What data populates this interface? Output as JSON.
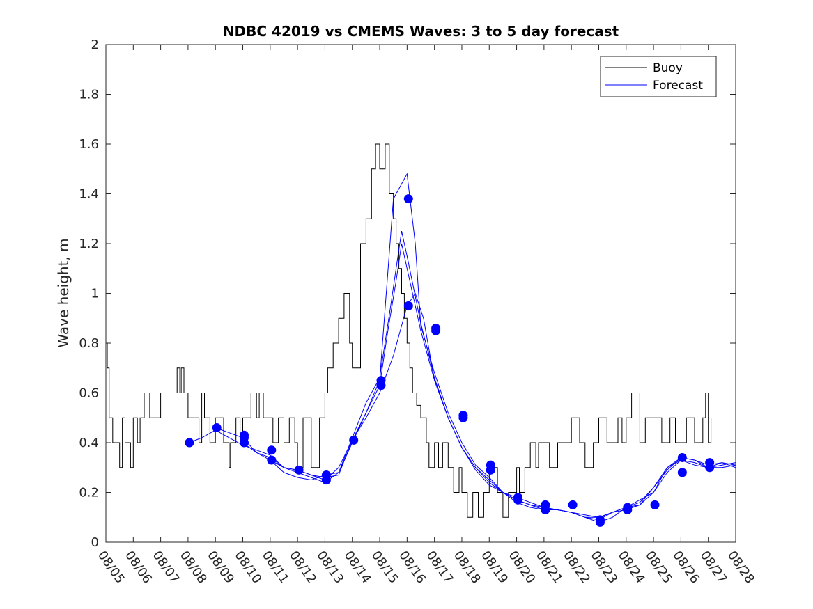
{
  "chart_data": {
    "type": "line",
    "title": "NDBC 42019 vs CMEMS Waves: 3 to 5 day forecast",
    "xlabel": "",
    "ylabel": "Wave height, m",
    "ylim": [
      0,
      2
    ],
    "xlim": [
      0,
      23
    ],
    "yticks": [
      0,
      0.2,
      0.4,
      0.6,
      0.8,
      1,
      1.2,
      1.4,
      1.6,
      1.8,
      2
    ],
    "ytick_labels": [
      "0",
      "0.2",
      "0.4",
      "0.6",
      "0.8",
      "1",
      "1.2",
      "1.4",
      "1.6",
      "1.8",
      "2"
    ],
    "xtick_labels": [
      "08/05",
      "08/06",
      "08/07",
      "08/08",
      "08/09",
      "08/10",
      "08/11",
      "08/12",
      "08/13",
      "08/14",
      "08/15",
      "08/16",
      "08/17",
      "08/18",
      "08/19",
      "08/20",
      "08/21",
      "08/22",
      "08/23",
      "08/24",
      "08/25",
      "08/26",
      "08/27",
      "08/28"
    ],
    "legend": {
      "location": "top-right",
      "entries": [
        "Buoy",
        "Forecast"
      ]
    },
    "colors": {
      "buoy": "#000000",
      "forecast": "#0000ff",
      "axis": "#262626"
    },
    "series": [
      {
        "name": "Buoy",
        "color": "#000000",
        "step": true,
        "x": [
          0,
          0.05,
          0.12,
          0.25,
          0.5,
          0.6,
          0.7,
          0.9,
          1.0,
          1.15,
          1.25,
          1.4,
          1.6,
          2.0,
          2.6,
          2.7,
          2.75,
          2.85,
          3.0,
          3.4,
          3.5,
          3.6,
          3.8,
          4.0,
          4.3,
          4.5,
          4.55,
          4.75,
          4.9,
          5.0,
          5.3,
          5.5,
          5.6,
          5.75,
          6.0,
          6.1,
          6.3,
          6.5,
          6.7,
          6.9,
          7.0,
          7.2,
          7.5,
          7.8,
          8.0,
          8.1,
          8.3,
          8.5,
          8.7,
          8.9,
          9.0,
          9.3,
          9.5,
          9.7,
          9.85,
          10.0,
          10.2,
          10.35,
          10.5,
          10.6,
          10.7,
          10.8,
          10.9,
          11.0,
          11.1,
          11.2,
          11.35,
          11.5,
          11.7,
          11.8,
          12.0,
          12.15,
          12.3,
          12.5,
          12.7,
          12.9,
          13.0,
          13.2,
          13.4,
          13.6,
          13.8,
          14.0,
          14.3,
          14.5,
          14.7,
          15.0,
          15.1,
          15.3,
          15.5,
          15.7,
          15.8,
          16.0,
          16.2,
          16.5,
          16.8,
          17.0,
          17.3,
          17.5,
          17.8,
          18.0,
          18.3,
          18.5,
          18.7,
          18.85,
          19.0,
          19.2,
          19.5,
          19.7,
          20.0,
          20.3,
          20.6,
          20.8,
          21.0,
          21.2,
          21.5,
          21.8,
          21.9,
          22.0,
          22.1
        ],
        "values": [
          0.8,
          0.7,
          0.5,
          0.4,
          0.3,
          0.5,
          0.4,
          0.3,
          0.5,
          0.4,
          0.5,
          0.6,
          0.5,
          0.6,
          0.7,
          0.6,
          0.7,
          0.6,
          0.5,
          0.4,
          0.6,
          0.5,
          0.4,
          0.5,
          0.4,
          0.3,
          0.4,
          0.5,
          0.4,
          0.5,
          0.6,
          0.5,
          0.6,
          0.5,
          0.5,
          0.4,
          0.5,
          0.4,
          0.5,
          0.4,
          0.3,
          0.5,
          0.3,
          0.5,
          0.6,
          0.7,
          0.8,
          0.9,
          1.0,
          0.8,
          0.7,
          1.2,
          1.3,
          1.5,
          1.6,
          1.5,
          1.6,
          1.4,
          1.3,
          1.2,
          1.1,
          1.0,
          0.9,
          0.8,
          0.7,
          0.6,
          0.55,
          0.5,
          0.4,
          0.3,
          0.4,
          0.3,
          0.4,
          0.3,
          0.2,
          0.3,
          0.2,
          0.1,
          0.2,
          0.1,
          0.2,
          0.3,
          0.2,
          0.1,
          0.2,
          0.3,
          0.2,
          0.3,
          0.4,
          0.3,
          0.4,
          0.4,
          0.3,
          0.4,
          0.4,
          0.5,
          0.4,
          0.3,
          0.4,
          0.5,
          0.4,
          0.4,
          0.5,
          0.4,
          0.5,
          0.6,
          0.4,
          0.5,
          0.5,
          0.4,
          0.5,
          0.4,
          0.4,
          0.5,
          0.4,
          0.5,
          0.6,
          0.4,
          0.5
        ]
      },
      {
        "name": "Forecast",
        "color": "#0000ff",
        "x": [
          3.05,
          3.5,
          4.0,
          4.5,
          5.0,
          5.5,
          6.0,
          6.5,
          7.0,
          7.5,
          8.0,
          8.5,
          9.0,
          9.5,
          10.0,
          10.3,
          10.6,
          10.8,
          11.0,
          11.5,
          12.0,
          12.5,
          13.0,
          13.5,
          14.0,
          14.5,
          15.0,
          15.5,
          16.0,
          16.5,
          17.0,
          17.5,
          18.0,
          18.5,
          19.0,
          19.5,
          20.0,
          20.5,
          21.0,
          21.5,
          22.0,
          22.5,
          23.0
        ],
        "values": [
          0.4,
          0.42,
          0.45,
          0.42,
          0.39,
          0.37,
          0.35,
          0.3,
          0.29,
          0.27,
          0.25,
          0.3,
          0.41,
          0.52,
          0.63,
          0.85,
          1.05,
          1.2,
          1.1,
          0.85,
          0.65,
          0.5,
          0.38,
          0.3,
          0.25,
          0.2,
          0.18,
          0.16,
          0.14,
          0.13,
          0.12,
          0.1,
          0.09,
          0.12,
          0.13,
          0.15,
          0.2,
          0.28,
          0.33,
          0.32,
          0.3,
          0.32,
          0.31
        ]
      },
      {
        "name": "Forecast",
        "color": "#0000ff",
        "x": [
          4.0,
          4.5,
          5.0,
          5.5,
          6.0,
          6.5,
          7.0,
          7.5,
          8.0,
          8.5,
          9.0,
          9.5,
          10.0,
          10.4,
          10.6,
          10.8,
          11.0,
          11.5,
          12.0,
          12.5,
          13.0,
          13.5,
          14.0,
          14.5,
          15.0,
          15.5,
          16.0,
          16.5,
          17.0,
          17.5,
          18.0,
          18.5,
          19.0,
          19.5,
          20.0,
          20.5,
          21.0,
          21.5,
          22.0,
          22.5,
          23.0
        ],
        "values": [
          0.46,
          0.44,
          0.42,
          0.36,
          0.34,
          0.3,
          0.28,
          0.26,
          0.24,
          0.28,
          0.42,
          0.56,
          0.66,
          0.95,
          1.1,
          1.25,
          1.15,
          0.88,
          0.66,
          0.5,
          0.38,
          0.3,
          0.24,
          0.2,
          0.17,
          0.15,
          0.13,
          0.13,
          0.12,
          0.1,
          0.08,
          0.1,
          0.14,
          0.17,
          0.2,
          0.3,
          0.34,
          0.33,
          0.31,
          0.32,
          0.3
        ]
      },
      {
        "name": "Forecast",
        "color": "#0000ff",
        "x": [
          5.0,
          5.5,
          6.0,
          6.5,
          7.0,
          7.5,
          8.0,
          8.5,
          9.0,
          9.5,
          10.0,
          10.5,
          11.0,
          11.3,
          11.5,
          12.0,
          12.5,
          13.0,
          13.5,
          14.0,
          14.5,
          15.0,
          15.5,
          16.0,
          16.5,
          17.0,
          17.5,
          18.0,
          18.5,
          19.0,
          19.5,
          20.0,
          20.5,
          21.0,
          21.5,
          22.0,
          22.5,
          23.0
        ],
        "values": [
          0.4,
          0.36,
          0.33,
          0.28,
          0.26,
          0.25,
          0.27,
          0.28,
          0.4,
          0.52,
          0.65,
          1.38,
          1.48,
          1.2,
          0.87,
          0.68,
          0.52,
          0.4,
          0.31,
          0.26,
          0.2,
          0.17,
          0.15,
          0.14,
          0.13,
          0.12,
          0.1,
          0.1,
          0.12,
          0.14,
          0.16,
          0.22,
          0.3,
          0.33,
          0.31,
          0.3,
          0.3,
          0.31
        ]
      },
      {
        "name": "Forecast",
        "color": "#0000ff",
        "x": [
          6.0,
          6.5,
          7.0,
          7.5,
          8.0,
          8.5,
          9.0,
          9.5,
          10.0,
          10.5,
          11.0,
          11.3,
          11.6,
          12.0,
          12.5,
          13.0,
          13.5,
          14.0,
          14.5,
          15.0,
          15.5,
          16.0,
          16.5,
          17.0,
          17.5,
          18.0,
          18.5,
          19.0,
          19.5,
          20.0,
          20.5,
          21.0,
          21.5,
          22.0,
          22.5,
          23.0
        ],
        "values": [
          0.33,
          0.3,
          0.29,
          0.27,
          0.26,
          0.27,
          0.41,
          0.5,
          0.6,
          0.75,
          0.95,
          1.0,
          0.9,
          0.65,
          0.5,
          0.38,
          0.29,
          0.23,
          0.2,
          0.16,
          0.14,
          0.13,
          0.13,
          0.12,
          0.11,
          0.1,
          0.12,
          0.14,
          0.15,
          0.22,
          0.29,
          0.34,
          0.33,
          0.3,
          0.31,
          0.32
        ]
      }
    ],
    "markers": {
      "name": "Forecast",
      "color": "#0000ff",
      "x": [
        3.05,
        4.05,
        5.05,
        5.05,
        5.05,
        6.05,
        6.05,
        7.05,
        8.05,
        8.05,
        9.05,
        10.05,
        10.05,
        11.05,
        11.05,
        12.05,
        12.05,
        13.05,
        13.05,
        14.05,
        14.05,
        15.05,
        15.05,
        16.05,
        16.05,
        17.05,
        18.05,
        18.05,
        19.05,
        19.05,
        20.05,
        21.05,
        21.05,
        22.05,
        22.05
      ],
      "values": [
        0.4,
        0.46,
        0.43,
        0.42,
        0.4,
        0.37,
        0.33,
        0.29,
        0.27,
        0.25,
        0.41,
        0.65,
        0.63,
        1.38,
        0.95,
        0.86,
        0.85,
        0.51,
        0.5,
        0.31,
        0.29,
        0.18,
        0.17,
        0.15,
        0.13,
        0.15,
        0.09,
        0.08,
        0.14,
        0.13,
        0.15,
        0.34,
        0.28,
        0.32,
        0.3
      ]
    }
  }
}
